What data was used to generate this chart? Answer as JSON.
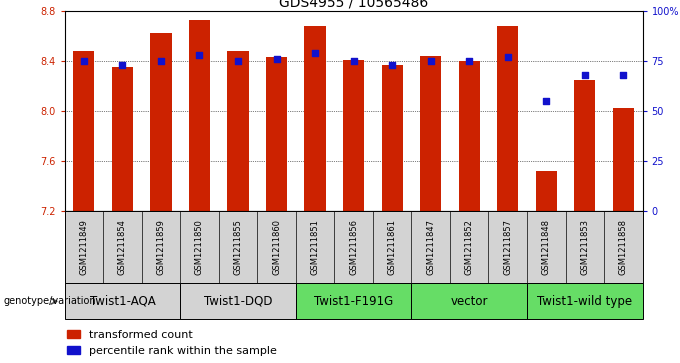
{
  "title": "GDS4955 / 10565486",
  "samples": [
    "GSM1211849",
    "GSM1211854",
    "GSM1211859",
    "GSM1211850",
    "GSM1211855",
    "GSM1211860",
    "GSM1211851",
    "GSM1211856",
    "GSM1211861",
    "GSM1211847",
    "GSM1211852",
    "GSM1211857",
    "GSM1211848",
    "GSM1211853",
    "GSM1211858"
  ],
  "bar_values": [
    8.48,
    8.35,
    8.62,
    8.73,
    8.48,
    8.43,
    8.68,
    8.41,
    8.37,
    8.44,
    8.4,
    8.68,
    7.52,
    8.25,
    8.02
  ],
  "dot_values": [
    75,
    73,
    75,
    78,
    75,
    76,
    79,
    75,
    73,
    75,
    75,
    77,
    55,
    68,
    68
  ],
  "ylim_left": [
    7.2,
    8.8
  ],
  "ylim_right": [
    0,
    100
  ],
  "yticks_left": [
    7.2,
    7.6,
    8.0,
    8.4,
    8.8
  ],
  "yticks_right": [
    0,
    25,
    50,
    75,
    100
  ],
  "ytick_labels_right": [
    "0",
    "25",
    "50",
    "75",
    "100%"
  ],
  "bar_color": "#cc2200",
  "dot_color": "#1111cc",
  "groups": [
    {
      "label": "Twist1-AQA",
      "start": 0,
      "end": 3,
      "color": "#d3d3d3"
    },
    {
      "label": "Twist1-DQD",
      "start": 3,
      "end": 6,
      "color": "#d3d3d3"
    },
    {
      "label": "Twist1-F191G",
      "start": 6,
      "end": 9,
      "color": "#66dd66"
    },
    {
      "label": "vector",
      "start": 9,
      "end": 12,
      "color": "#66dd66"
    },
    {
      "label": "Twist1-wild type",
      "start": 12,
      "end": 15,
      "color": "#66dd66"
    }
  ],
  "legend_red_label": "transformed count",
  "legend_blue_label": "percentile rank within the sample",
  "genotype_label": "genotype/variation",
  "title_fontsize": 10,
  "tick_fontsize": 7,
  "sample_fontsize": 6,
  "group_label_fontsize": 8.5,
  "legend_fontsize": 8
}
